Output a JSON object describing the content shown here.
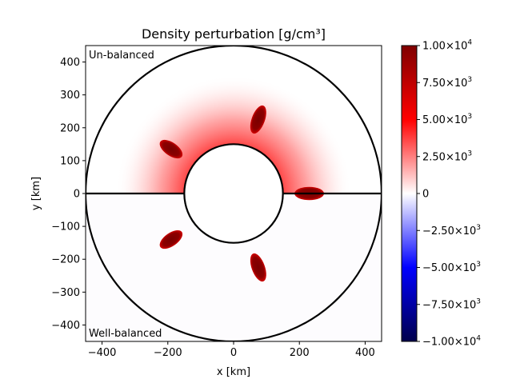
{
  "chart_data": {
    "type": "heatmap",
    "title": "Density perturbation [g/cm³]",
    "xlabel": "x [km]",
    "ylabel": "y [km]",
    "xlim": [
      -450,
      450
    ],
    "ylim": [
      -450,
      450
    ],
    "x_ticks": [
      -400,
      -200,
      0,
      200,
      400
    ],
    "y_ticks": [
      -400,
      -300,
      -200,
      -100,
      0,
      100,
      200,
      300,
      400
    ],
    "x_tick_labels": [
      "−400",
      "−200",
      "0",
      "200",
      "400"
    ],
    "y_tick_labels": [
      "−400",
      "−300",
      "−200",
      "−100",
      "0",
      "100",
      "200",
      "300",
      "400"
    ],
    "annotations": {
      "top_half": "Un-balanced",
      "bottom_half": "Well-balanced"
    },
    "inner_circle_radius_km": 150,
    "outer_circle_radius_km": 450,
    "divider_y_km": 0,
    "background_halo": {
      "center_radius_km": 150,
      "extent_radius_km": 360,
      "peak_value": 3500,
      "half": "top"
    },
    "blobs": [
      {
        "half": "top",
        "center": [
          -190,
          135
        ],
        "angle_deg": 145,
        "length_km": 80,
        "width_km": 40,
        "value": 10000
      },
      {
        "half": "top",
        "center": [
          75,
          225
        ],
        "angle_deg": 70,
        "length_km": 90,
        "width_km": 40,
        "value": 10000
      },
      {
        "half": "top",
        "center": [
          230,
          0
        ],
        "angle_deg": 0,
        "length_km": 90,
        "width_km": 40,
        "value": 10000
      },
      {
        "half": "bottom",
        "center": [
          -190,
          -140
        ],
        "angle_deg": 35,
        "length_km": 80,
        "width_km": 40,
        "value": 10000
      },
      {
        "half": "bottom",
        "center": [
          75,
          -225
        ],
        "angle_deg": 110,
        "length_km": 90,
        "width_km": 40,
        "value": 10000
      }
    ],
    "colorbar": {
      "colormap": "seismic",
      "vmin": -10000,
      "vmax": 10000,
      "ticks": [
        -10000,
        -7500,
        -5000,
        -2500,
        0,
        2500,
        5000,
        7500,
        10000
      ],
      "tick_mantissas": [
        "−1.00",
        "−7.50",
        "−5.00",
        "−2.50",
        "0",
        "2.50",
        "5.00",
        "7.50",
        "1.00"
      ],
      "tick_exponents": [
        "4",
        "3",
        "3",
        "3",
        "",
        "3",
        "3",
        "3",
        "4"
      ],
      "colors": {
        "min": "#00004c",
        "low": "#0000ff",
        "mid": "#ffffff",
        "high": "#ff0000",
        "max": "#7f0000"
      }
    }
  }
}
